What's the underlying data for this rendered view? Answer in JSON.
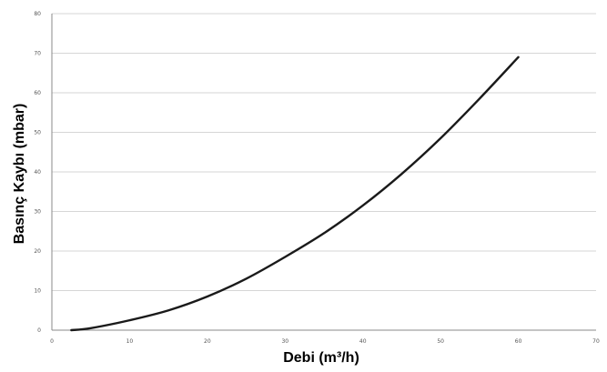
{
  "chart_data": {
    "type": "line",
    "title": "",
    "xlabel": "Debi (m³/h)",
    "ylabel": "Basınç Kaybı (mbar)",
    "xlim": [
      0,
      70
    ],
    "ylim": [
      0,
      80
    ],
    "xticks": [
      0,
      10,
      20,
      30,
      40,
      50,
      60,
      70
    ],
    "yticks": [
      0,
      10,
      20,
      30,
      40,
      50,
      60,
      70,
      80
    ],
    "grid": "horizontal",
    "legend": "none",
    "series": [
      {
        "color": "#1a1a1a",
        "x": [
          2.5,
          5,
          10,
          15,
          20,
          25,
          30,
          35,
          40,
          45,
          50,
          55,
          60
        ],
        "y": [
          0,
          0.5,
          2.5,
          5,
          8.5,
          13,
          18.5,
          24.5,
          31.5,
          39.5,
          48.5,
          58.5,
          69
        ]
      }
    ]
  }
}
